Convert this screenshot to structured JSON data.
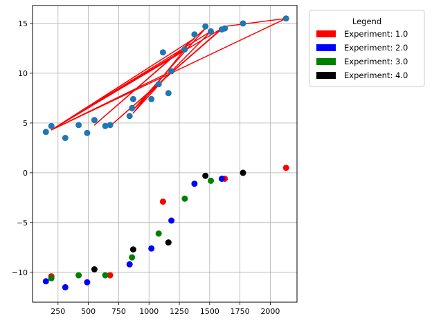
{
  "chart_data": {
    "type": "scatter",
    "title": "",
    "xlabel": "",
    "ylabel": "",
    "xlim": [
      40,
      2220
    ],
    "ylim": [
      -13,
      16.8
    ],
    "grid": true,
    "x_ticks": [
      250,
      500,
      750,
      1000,
      1250,
      1500,
      1750,
      2000
    ],
    "y_ticks": [
      -10,
      -5,
      0,
      5,
      10,
      15
    ],
    "legend": {
      "title": "Legend",
      "placement": "outside-upper-right",
      "entries": [
        {
          "label": "Experiment: 1.0",
          "color": "#ff0000"
        },
        {
          "label": "Experiment: 2.0",
          "color": "#0000ff"
        },
        {
          "label": "Experiment: 3.0",
          "color": "#008000"
        },
        {
          "label": "Experiment: 4.0",
          "color": "#000000"
        }
      ]
    },
    "series": [
      {
        "marker": "circle",
        "color": "#1f77b4",
        "points": [
          [
            150,
            4.1
          ],
          [
            195,
            4.7
          ],
          [
            310,
            3.5
          ],
          [
            420,
            4.8
          ],
          [
            490,
            4.0
          ],
          [
            550,
            5.3
          ],
          [
            640,
            4.7
          ],
          [
            680,
            4.8
          ],
          [
            840,
            5.7
          ],
          [
            860,
            6.5
          ],
          [
            870,
            7.4
          ],
          [
            1020,
            7.4
          ],
          [
            1080,
            8.9
          ],
          [
            1115,
            12.1
          ],
          [
            1160,
            8.0
          ],
          [
            1185,
            10.2
          ],
          [
            1295,
            12.4
          ],
          [
            1375,
            13.9
          ],
          [
            1465,
            14.7
          ],
          [
            1510,
            14.2
          ],
          [
            1600,
            14.4
          ],
          [
            1625,
            14.5
          ],
          [
            1775,
            15.0
          ],
          [
            2130,
            15.5
          ]
        ]
      },
      {
        "mode": "line",
        "color": "#ff0000",
        "points": [
          [
            195,
            4.3
          ],
          [
            2130,
            15.5
          ],
          [
            1625,
            14.7
          ],
          [
            680,
            4.7
          ],
          [
            1600,
            14.5
          ],
          [
            195,
            4.3
          ],
          [
            1510,
            14.2
          ],
          [
            860,
            6.2
          ],
          [
            1465,
            14.5
          ],
          [
            550,
            4.8
          ],
          [
            1375,
            13.5
          ],
          [
            195,
            4.3
          ],
          [
            1295,
            12.4
          ],
          [
            870,
            6.0
          ],
          [
            1185,
            10.2
          ],
          [
            195,
            4.3
          ]
        ]
      },
      {
        "name": "Experiment: 1.0",
        "marker": "circle",
        "color": "#ff0000",
        "points": [
          [
            195,
            -10.4
          ],
          [
            680,
            -10.3
          ],
          [
            1115,
            -2.9
          ],
          [
            1625,
            -0.6
          ],
          [
            2130,
            0.5
          ]
        ]
      },
      {
        "name": "Experiment: 2.0",
        "marker": "circle",
        "color": "#0000ff",
        "points": [
          [
            150,
            -10.9
          ],
          [
            310,
            -11.5
          ],
          [
            490,
            -11.0
          ],
          [
            840,
            -9.2
          ],
          [
            1020,
            -7.6
          ],
          [
            1185,
            -4.8
          ],
          [
            1375,
            -1.1
          ],
          [
            1600,
            -0.6
          ]
        ]
      },
      {
        "name": "Experiment: 3.0",
        "marker": "circle",
        "color": "#008000",
        "points": [
          [
            195,
            -10.6
          ],
          [
            420,
            -10.3
          ],
          [
            640,
            -10.3
          ],
          [
            860,
            -8.5
          ],
          [
            1080,
            -6.1
          ],
          [
            1295,
            -2.6
          ],
          [
            1510,
            -0.8
          ]
        ]
      },
      {
        "name": "Experiment: 4.0",
        "marker": "circle",
        "color": "#000000",
        "points": [
          [
            550,
            -9.7
          ],
          [
            870,
            -7.7
          ],
          [
            1160,
            -7.0
          ],
          [
            1465,
            -0.3
          ],
          [
            1775,
            0.0
          ]
        ]
      }
    ]
  }
}
